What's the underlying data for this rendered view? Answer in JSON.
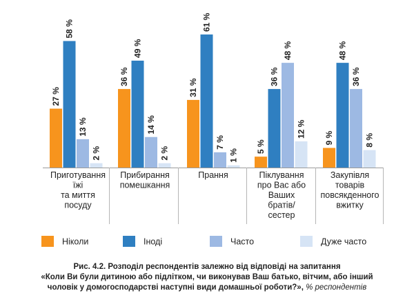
{
  "chart_data": {
    "type": "bar",
    "categories": [
      [
        "Приготування",
        "їжі",
        "та миття",
        "посуду"
      ],
      [
        "Прибирання",
        "помешкання"
      ],
      [
        "Прання"
      ],
      [
        "Піклування",
        "про Вас або",
        "Ваших",
        "братів/",
        "сестер"
      ],
      [
        "Закупівля",
        "товарів",
        "повсякденного",
        "вжитку"
      ]
    ],
    "series": [
      {
        "name": "Ніколи",
        "color": "#F7941D",
        "values": [
          27,
          36,
          31,
          5,
          9
        ]
      },
      {
        "name": "Іноді",
        "color": "#2F7FC1",
        "values": [
          58,
          49,
          61,
          36,
          48
        ]
      },
      {
        "name": "Часто",
        "color": "#9DB9E3",
        "values": [
          13,
          14,
          7,
          48,
          36
        ]
      },
      {
        "name": "Дуже часто",
        "color": "#D6E4F5",
        "values": [
          2,
          2,
          1,
          12,
          8
        ]
      }
    ],
    "value_suffix": " %",
    "ylim": [
      0,
      65
    ],
    "grid": false,
    "legend_position": "bottom"
  },
  "caption": {
    "line1": "Рис. 4.2. Розподіл респондентів залежно від відповіді на запитання",
    "line2": "«Коли Ви були дитиною або підлітком, чи виконував Ваш батько, вітчим, або інший",
    "line3": "чоловік у домогосподарстві наступні види домашньої роботи?»,",
    "note": "% респондентів"
  }
}
